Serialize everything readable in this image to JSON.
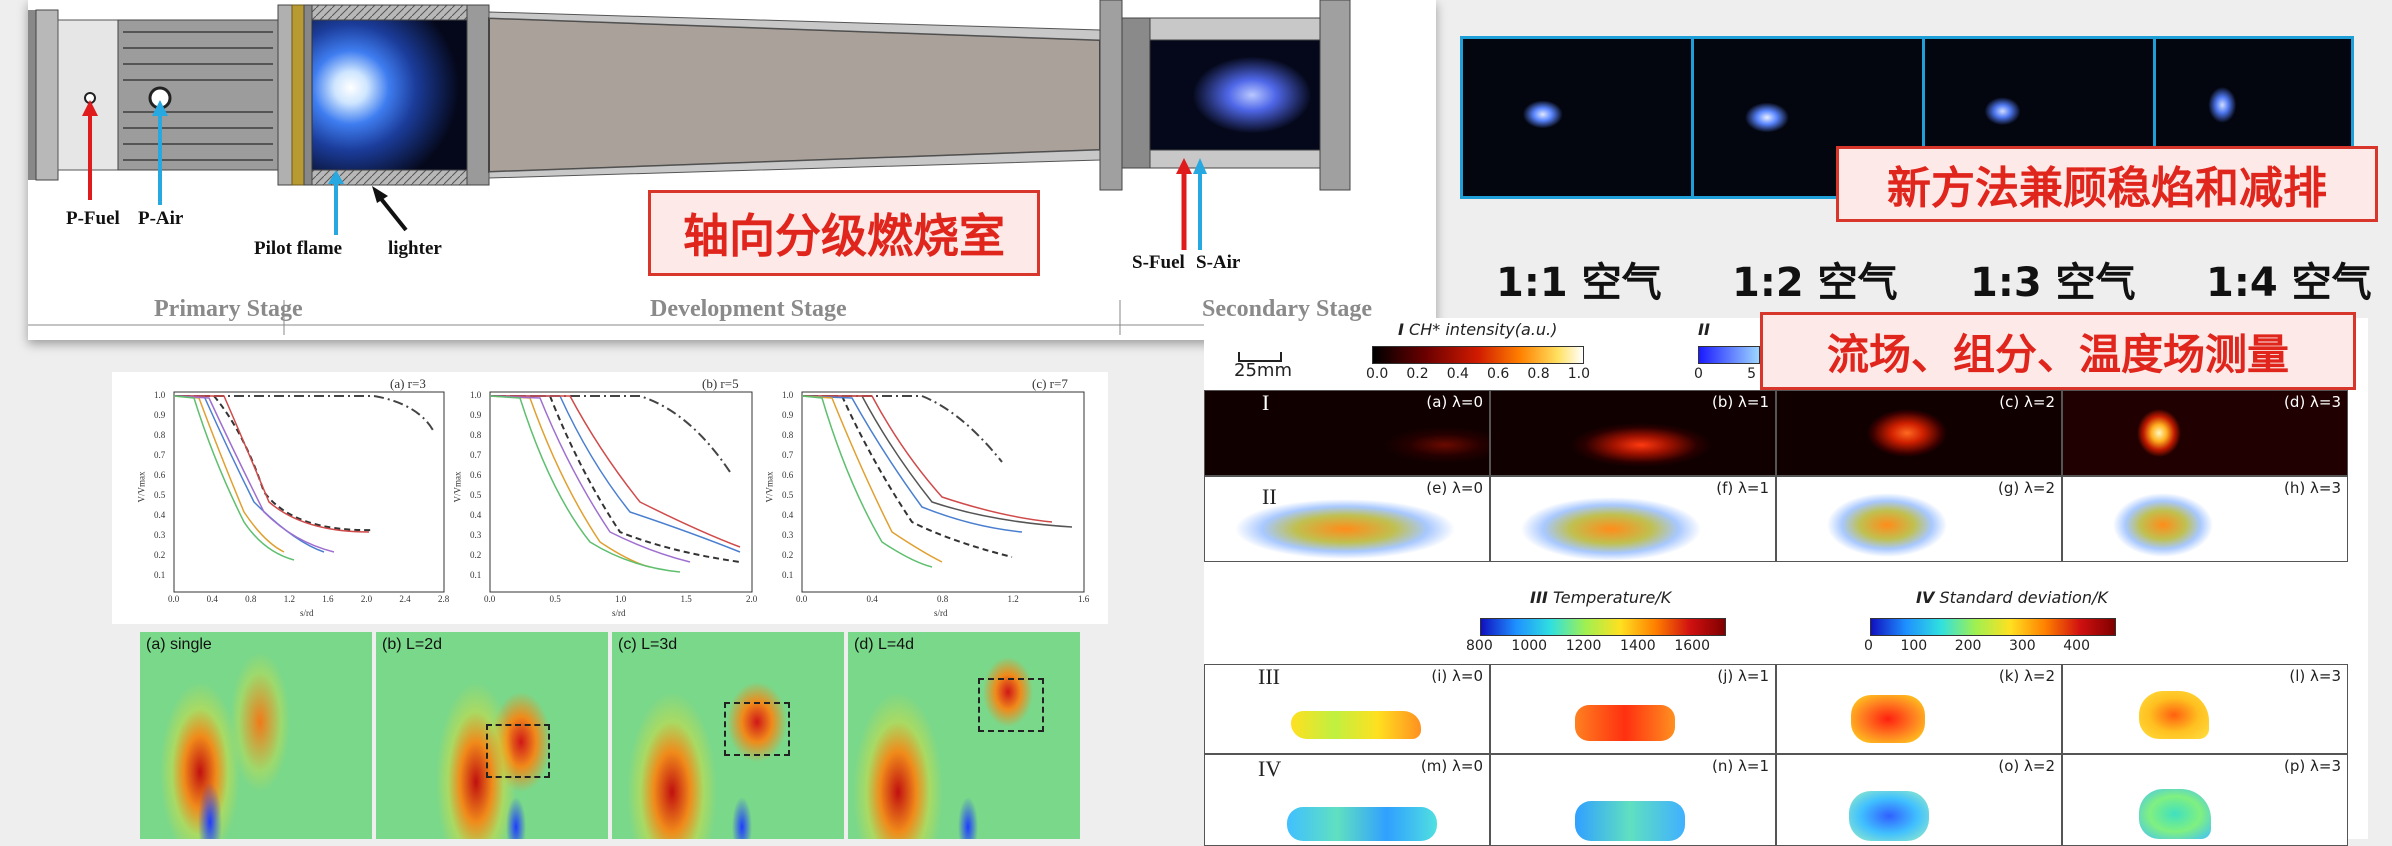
{
  "combustor": {
    "labels": {
      "p_fuel": "P-Fuel",
      "p_air": "P-Air",
      "pilot_flame": "Pilot flame",
      "lighter": "lighter",
      "s_fuel": "S-Fuel",
      "s_air": "S-Air",
      "primary_stage": "Primary Stage",
      "development_stage": "Development Stage",
      "secondary_stage": "Secondary Stage"
    },
    "title_cn": "轴向分级燃烧室"
  },
  "flame_images": {
    "title_cn": "新方法兼顾稳焰和减排",
    "ratios": [
      "1:1 空气",
      "1:2 空气",
      "1:3 空气",
      "1:4 空气"
    ]
  },
  "velocity_plots": {
    "panels": [
      {
        "label": "(a) r=3",
        "xticks": [
          "0.0",
          "0.4",
          "0.8",
          "1.2",
          "1.6",
          "2.0",
          "2.4",
          "2.8"
        ]
      },
      {
        "label": "(b) r=5",
        "xticks": [
          "0.0",
          "0.5",
          "1.0",
          "1.5",
          "2.0"
        ]
      },
      {
        "label": "(c) r=7",
        "xticks": [
          "0.0",
          "0.4",
          "0.8",
          "1.2",
          "1.6"
        ]
      }
    ],
    "yticks": [
      "1.0",
      "0.9",
      "0.8",
      "0.7",
      "0.6",
      "0.5",
      "0.4",
      "0.3",
      "0.2",
      "0.1"
    ],
    "ylabel": "V/Vmax",
    "xlabel": "s/rd"
  },
  "cfd_panels": [
    "(a) single",
    "(b) L=2d",
    "(c) L=3d",
    "(d) L=4d"
  ],
  "measurements": {
    "title_cn": "流场、组分、温度场测量",
    "scale": "25mm",
    "colorbar_I": {
      "title": "CH* intensity(a.u.)",
      "roman": "I",
      "ticks": [
        "0.0",
        "0.2",
        "0.4",
        "0.6",
        "0.8",
        "1.0"
      ]
    },
    "colorbar_II": {
      "roman": "II",
      "ticks": [
        "0",
        "5"
      ]
    },
    "colorbar_III": {
      "title": "Temperature/K",
      "roman": "III",
      "ticks": [
        "800",
        "1000",
        "1200",
        "1400",
        "1600"
      ]
    },
    "colorbar_IV": {
      "title": "Standard deviation/K",
      "roman": "IV",
      "ticks": [
        "0",
        "100",
        "200",
        "300",
        "400"
      ]
    },
    "rows": [
      {
        "roman": "I",
        "cells": [
          "(a) λ=0",
          "(b) λ=1",
          "(c) λ=2",
          "(d) λ=3"
        ]
      },
      {
        "roman": "II",
        "cells": [
          "(e) λ=0",
          "(f) λ=1",
          "(g) λ=2",
          "(h) λ=3"
        ]
      },
      {
        "roman": "III",
        "cells": [
          "(i) λ=0",
          "(j) λ=1",
          "(k) λ=2",
          "(l) λ=3"
        ]
      },
      {
        "roman": "IV",
        "cells": [
          "(m) λ=0",
          "(n) λ=1",
          "(o) λ=2",
          "(p) λ=3"
        ]
      }
    ]
  },
  "colors": {
    "accent_red": "#e0251c",
    "label_bg": "#fde9e7",
    "frame_blue": "#1e9fd8"
  }
}
